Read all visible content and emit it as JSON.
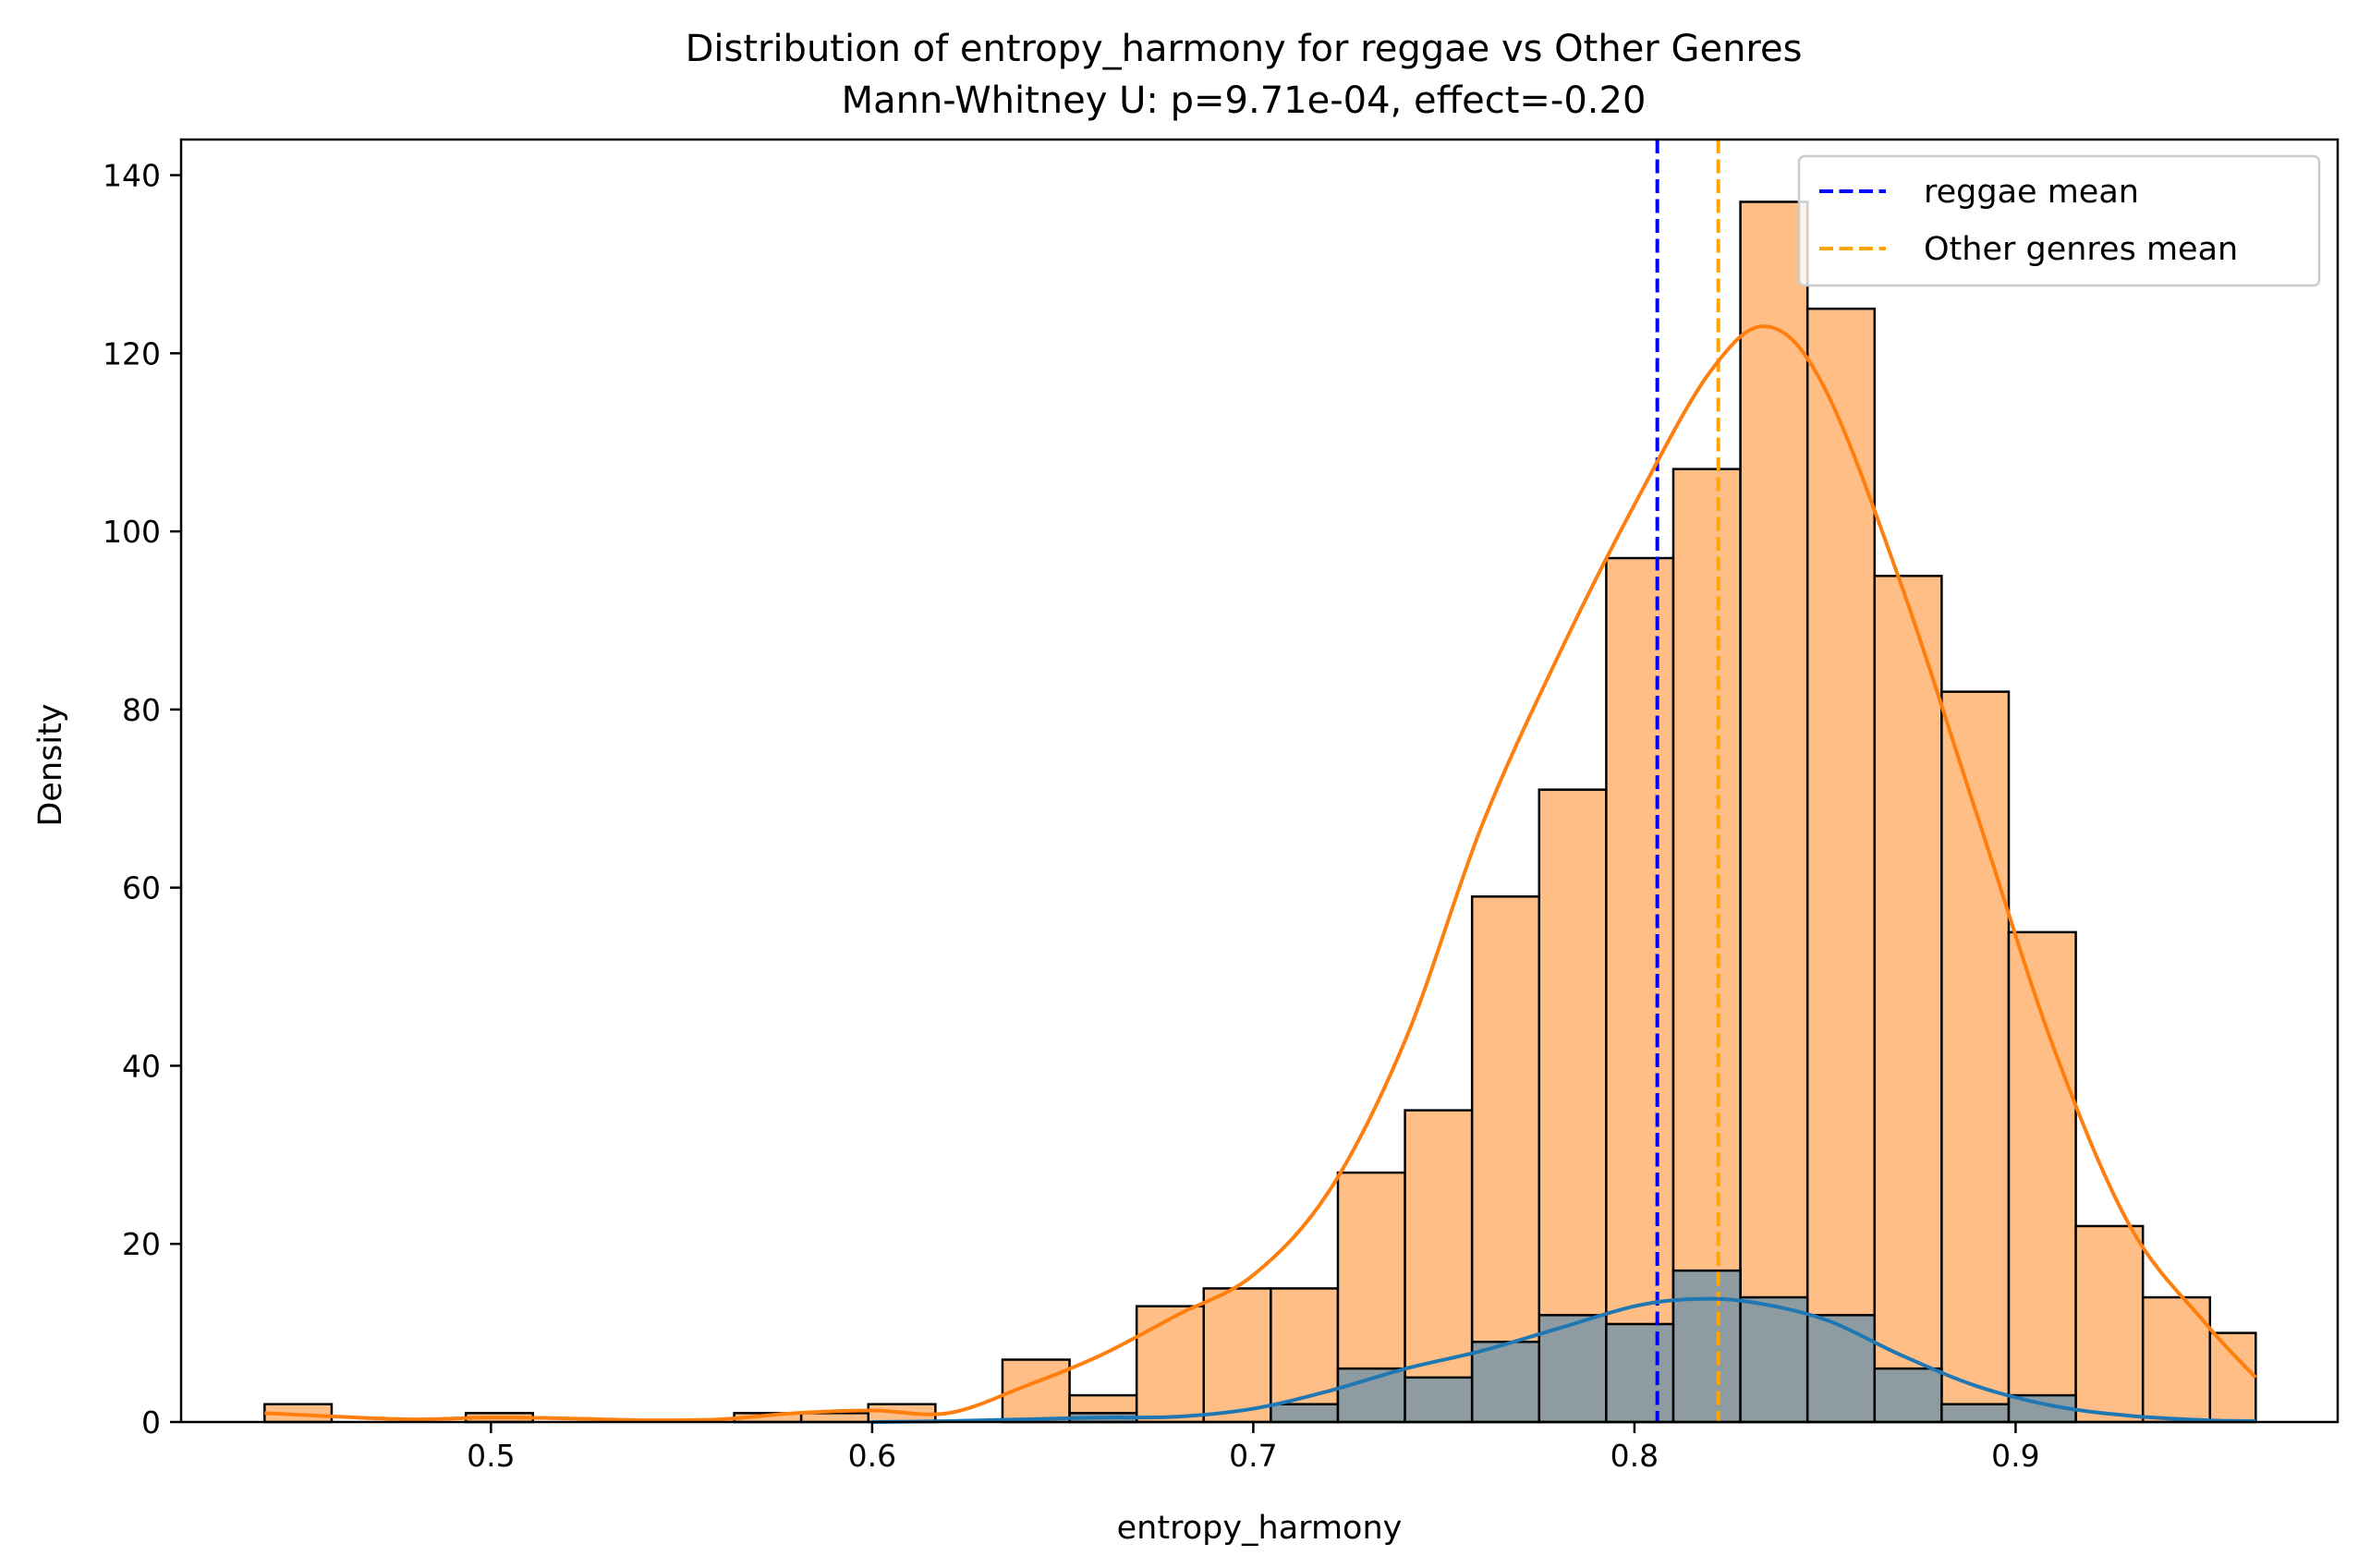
{
  "chart_data": {
    "type": "histogram",
    "title": "Distribution of entropy_harmony for reggae vs Other Genres",
    "subtitle": "Mann-Whitney U: p=9.71e-04, effect=-0.20",
    "xlabel": "entropy_harmony",
    "ylabel": "Density",
    "xlim": [
      0.4187,
      0.9845
    ],
    "ylim": [
      0,
      144
    ],
    "xticks": [
      0.5,
      0.6,
      0.7,
      0.8,
      0.9
    ],
    "xtick_labels": [
      "0.5",
      "0.6",
      "0.7",
      "0.8",
      "0.9"
    ],
    "yticks": [
      0,
      20,
      40,
      60,
      80,
      100,
      120,
      140
    ],
    "ytick_labels": [
      "0",
      "20",
      "40",
      "60",
      "80",
      "100",
      "120",
      "140"
    ],
    "grid": false,
    "legend_position": "top-right",
    "bin_edges": [
      0.4406,
      0.4582,
      0.4758,
      0.4934,
      0.511,
      0.5286,
      0.5462,
      0.5638,
      0.5814,
      0.599,
      0.6166,
      0.6342,
      0.6518,
      0.6694,
      0.687,
      0.7046,
      0.7222,
      0.7398,
      0.7574,
      0.775,
      0.7926,
      0.8102,
      0.8278,
      0.8454,
      0.863,
      0.8806,
      0.8982,
      0.9158,
      0.9334,
      0.951,
      0.963
    ],
    "series": [
      {
        "name": "Other genres",
        "color": "#ff7f0e",
        "bar_fill": "#ffbe86",
        "counts": [
          2,
          0,
          0,
          1,
          0,
          0,
          0,
          1,
          1,
          2,
          0,
          7,
          3,
          13,
          15,
          15,
          28,
          35,
          59,
          71,
          97,
          107,
          137,
          125,
          95,
          82,
          55,
          22,
          14,
          10
        ],
        "kde": {
          "x": [
            0.4406,
            0.46,
            0.48,
            0.5,
            0.52,
            0.54,
            0.56,
            0.58,
            0.6,
            0.62,
            0.64,
            0.66,
            0.68,
            0.7,
            0.72,
            0.74,
            0.76,
            0.78,
            0.8,
            0.82,
            0.835,
            0.85,
            0.87,
            0.89,
            0.91,
            0.93,
            0.95,
            0.963
          ],
          "y": [
            1.0,
            0.6,
            0.3,
            0.5,
            0.4,
            0.2,
            0.3,
            1.0,
            1.3,
            1.0,
            4.0,
            7.5,
            12.0,
            16.5,
            26.0,
            43.0,
            67.0,
            86.0,
            103.0,
            118.0,
            123.0,
            116.0,
            94.0,
            68.0,
            42.0,
            22.0,
            11.0,
            5.0
          ]
        }
      },
      {
        "name": "reggae",
        "color": "#1f77b4",
        "bar_fill": "#8e9ba1",
        "counts": [
          0,
          0,
          0,
          0,
          0,
          0,
          0,
          0,
          0,
          0,
          0,
          0,
          1,
          0,
          0,
          2,
          6,
          5,
          9,
          12,
          11,
          17,
          14,
          12,
          6,
          2,
          3,
          0,
          0,
          0
        ],
        "kde": {
          "x": [
            0.6,
            0.62,
            0.64,
            0.66,
            0.68,
            0.7,
            0.72,
            0.74,
            0.76,
            0.78,
            0.8,
            0.815,
            0.83,
            0.85,
            0.87,
            0.89,
            0.91,
            0.93,
            0.95,
            0.963
          ],
          "y": [
            0.0,
            0.1,
            0.3,
            0.5,
            0.6,
            1.5,
            3.5,
            6.0,
            8.0,
            10.5,
            13.0,
            13.8,
            13.5,
            11.5,
            7.5,
            4.0,
            1.8,
            0.7,
            0.2,
            0.1
          ]
        }
      }
    ],
    "reference_lines": [
      {
        "label": "reggae mean",
        "x": 0.806,
        "color": "#0000ff",
        "style": "dashed"
      },
      {
        "label": "Other genres mean",
        "x": 0.822,
        "color": "#ffa500",
        "style": "dashed"
      }
    ]
  }
}
